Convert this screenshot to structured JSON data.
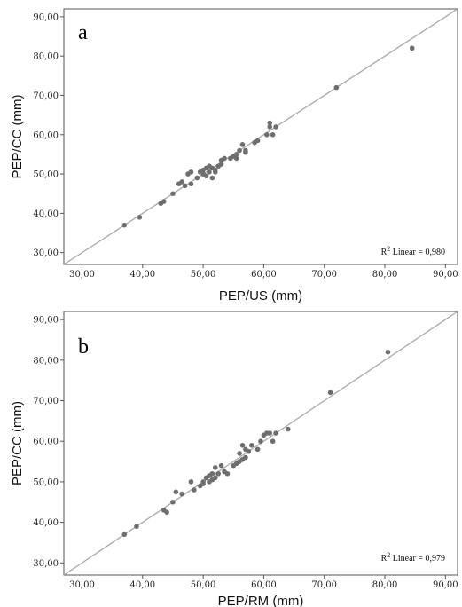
{
  "chart_data": [
    {
      "type": "scatter",
      "panel_label": "a",
      "xlabel": "PEP/US (mm)",
      "ylabel": "PEP/CC (mm)",
      "xlim": [
        27,
        92
      ],
      "ylim": [
        27,
        92
      ],
      "xticks": [
        "30,00",
        "40,00",
        "50,00",
        "60,00",
        "70,00",
        "80,00",
        "90,00"
      ],
      "yticks": [
        "30,00",
        "40,00",
        "50,00",
        "60,00",
        "70,00",
        "80,00",
        "90,00"
      ],
      "annotation": {
        "prefix": "R",
        "sup": "2",
        "text": " Linear = 0,980"
      },
      "fit_line": {
        "x": [
          27,
          92
        ],
        "y": [
          27,
          92
        ]
      },
      "points": [
        [
          37.0,
          37.0
        ],
        [
          39.5,
          39.0
        ],
        [
          43.0,
          42.5
        ],
        [
          43.5,
          43.0
        ],
        [
          45.0,
          45.0
        ],
        [
          46.0,
          47.5
        ],
        [
          46.5,
          48.0
        ],
        [
          47.0,
          47.0
        ],
        [
          47.5,
          50.0
        ],
        [
          48.0,
          50.5
        ],
        [
          48.0,
          47.5
        ],
        [
          49.0,
          49.0
        ],
        [
          49.5,
          50.5
        ],
        [
          50.0,
          51.0
        ],
        [
          50.0,
          50.0
        ],
        [
          50.5,
          49.5
        ],
        [
          50.5,
          51.5
        ],
        [
          51.0,
          52.0
        ],
        [
          51.0,
          50.5
        ],
        [
          51.5,
          49.0
        ],
        [
          51.5,
          51.5
        ],
        [
          52.0,
          50.5
        ],
        [
          52.0,
          51.0
        ],
        [
          52.5,
          52.0
        ],
        [
          53.0,
          52.5
        ],
        [
          53.0,
          53.5
        ],
        [
          53.5,
          54.0
        ],
        [
          54.5,
          54.0
        ],
        [
          55.0,
          54.5
        ],
        [
          55.5,
          54.0
        ],
        [
          55.5,
          55.0
        ],
        [
          56.0,
          56.0
        ],
        [
          56.5,
          57.5
        ],
        [
          57.0,
          56.0
        ],
        [
          57.0,
          55.5
        ],
        [
          58.5,
          58.0
        ],
        [
          59.0,
          58.5
        ],
        [
          60.5,
          60.0
        ],
        [
          61.0,
          62.0
        ],
        [
          61.0,
          63.0
        ],
        [
          61.5,
          60.0
        ],
        [
          62.0,
          62.0
        ],
        [
          72.0,
          72.0
        ],
        [
          84.5,
          82.0
        ]
      ]
    },
    {
      "type": "scatter",
      "panel_label": "b",
      "xlabel": "PEP/RM (mm)",
      "ylabel": "PEP/CC (mm)",
      "xlim": [
        27,
        92
      ],
      "ylim": [
        27,
        92
      ],
      "xticks": [
        "30,00",
        "40,00",
        "50,00",
        "60,00",
        "70,00",
        "80,00",
        "90,00"
      ],
      "yticks": [
        "30,00",
        "40,00",
        "50,00",
        "60,00",
        "70,00",
        "80,00",
        "90,00"
      ],
      "annotation": {
        "prefix": "R",
        "sup": "2",
        "text": " Linear = 0,979"
      },
      "fit_line": {
        "x": [
          27,
          92
        ],
        "y": [
          27,
          92
        ]
      },
      "points": [
        [
          37.0,
          37.0
        ],
        [
          39.0,
          39.0
        ],
        [
          43.5,
          43.0
        ],
        [
          44.0,
          42.5
        ],
        [
          45.0,
          45.0
        ],
        [
          45.5,
          47.5
        ],
        [
          46.5,
          47.0
        ],
        [
          48.0,
          50.0
        ],
        [
          48.5,
          48.0
        ],
        [
          49.5,
          49.0
        ],
        [
          50.0,
          50.0
        ],
        [
          50.0,
          49.5
        ],
        [
          50.5,
          51.0
        ],
        [
          51.0,
          50.0
        ],
        [
          51.0,
          51.5
        ],
        [
          51.5,
          52.0
        ],
        [
          51.5,
          50.5
        ],
        [
          52.0,
          51.0
        ],
        [
          52.0,
          53.5
        ],
        [
          52.5,
          52.0
        ],
        [
          53.0,
          54.0
        ],
        [
          53.5,
          52.5
        ],
        [
          54.0,
          52.0
        ],
        [
          55.0,
          54.0
        ],
        [
          55.5,
          54.5
        ],
        [
          56.0,
          55.0
        ],
        [
          56.0,
          57.0
        ],
        [
          56.5,
          55.5
        ],
        [
          56.5,
          59.0
        ],
        [
          57.0,
          56.0
        ],
        [
          57.0,
          58.0
        ],
        [
          57.5,
          57.5
        ],
        [
          58.0,
          59.0
        ],
        [
          59.0,
          58.0
        ],
        [
          59.5,
          60.0
        ],
        [
          60.0,
          61.5
        ],
        [
          60.5,
          62.0
        ],
        [
          61.0,
          62.0
        ],
        [
          61.5,
          60.0
        ],
        [
          62.0,
          62.0
        ],
        [
          64.0,
          63.0
        ],
        [
          71.0,
          72.0
        ],
        [
          80.5,
          82.0
        ]
      ]
    }
  ]
}
